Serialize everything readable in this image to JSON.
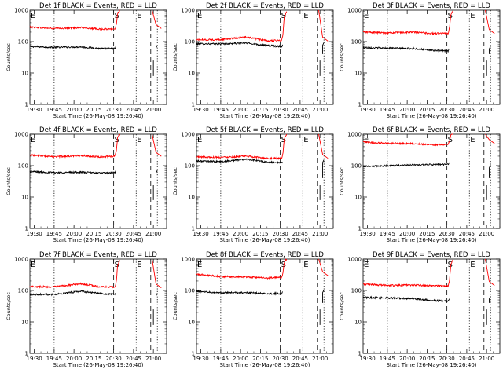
{
  "figure": {
    "xlabel": "Start Time (26-May-08 19:26:40)",
    "ylabel": "Counts/sec",
    "x_tick_labels": [
      "19:30",
      "19:45",
      "20:00",
      "20:15",
      "20:30",
      "20:45",
      "21:00"
    ],
    "y_tick_labels": [
      "1",
      "10",
      "100",
      "1000"
    ],
    "markers": {
      "S": "S",
      "E": "E"
    }
  },
  "colors": {
    "events": "#000000",
    "lld": "#ff0000"
  },
  "chart_data": [
    {
      "type": "line",
      "title": "Det 1f BLACK = Events, RED = LLD",
      "ylim": [
        1,
        1000
      ],
      "yscale": "log",
      "xlim": [
        "19:26:40",
        "21:10:00"
      ],
      "series": [
        {
          "name": "Events",
          "x": [
            "19:26:40",
            "19:45",
            "20:05",
            "20:20",
            "20:31",
            "20:32"
          ],
          "values": [
            70,
            66,
            68,
            60,
            60,
            70
          ]
        },
        {
          "name": "LLD",
          "x": [
            "19:26:40",
            "19:45",
            "20:05",
            "20:20",
            "20:31",
            "20:32",
            "20:33",
            "20:35"
          ],
          "values": [
            290,
            260,
            280,
            250,
            250,
            350,
            800,
            1050
          ]
        }
      ]
    },
    {
      "type": "line",
      "title": "Det 2f BLACK = Events, RED = LLD",
      "ylim": [
        1,
        1000
      ],
      "yscale": "log",
      "xlim": [
        "19:26:40",
        "21:10:00"
      ],
      "series": [
        {
          "name": "Events",
          "x": [
            "19:26:40",
            "19:45",
            "20:05",
            "20:20",
            "20:31",
            "20:32"
          ],
          "values": [
            85,
            85,
            90,
            75,
            70,
            80
          ]
        },
        {
          "name": "LLD",
          "x": [
            "19:26:40",
            "19:45",
            "20:05",
            "20:20",
            "20:31",
            "20:32",
            "20:33",
            "20:35"
          ],
          "values": [
            115,
            115,
            140,
            105,
            110,
            160,
            600,
            1000
          ]
        }
      ]
    },
    {
      "type": "line",
      "title": "Det 3f BLACK = Events, RED = LLD",
      "ylim": [
        1,
        1000
      ],
      "yscale": "log",
      "xlim": [
        "19:26:40",
        "21:10:00"
      ],
      "series": [
        {
          "name": "Events",
          "x": [
            "19:26:40",
            "19:45",
            "20:05",
            "20:20",
            "20:31",
            "20:32"
          ],
          "values": [
            65,
            62,
            60,
            52,
            50,
            60
          ]
        },
        {
          "name": "LLD",
          "x": [
            "19:26:40",
            "19:45",
            "20:05",
            "20:20",
            "20:31",
            "20:32",
            "20:33",
            "20:35"
          ],
          "values": [
            200,
            190,
            200,
            180,
            185,
            280,
            700,
            1050
          ]
        }
      ]
    },
    {
      "type": "line",
      "title": "Det 4f BLACK = Events, RED = LLD",
      "ylim": [
        1,
        1000
      ],
      "yscale": "log",
      "xlim": [
        "19:26:40",
        "21:10:00"
      ],
      "series": [
        {
          "name": "Events",
          "x": [
            "19:26:40",
            "19:45",
            "20:05",
            "20:20",
            "20:31",
            "20:32"
          ],
          "values": [
            65,
            60,
            62,
            58,
            60,
            75
          ]
        },
        {
          "name": "LLD",
          "x": [
            "19:26:40",
            "19:45",
            "20:05",
            "20:20",
            "20:31",
            "20:32",
            "20:33",
            "20:35"
          ],
          "values": [
            220,
            190,
            210,
            190,
            200,
            300,
            800,
            1050
          ]
        }
      ]
    },
    {
      "type": "line",
      "title": "Det 5f BLACK = Events, RED = LLD",
      "ylim": [
        1,
        1000
      ],
      "yscale": "log",
      "xlim": [
        "19:26:40",
        "21:10:00"
      ],
      "series": [
        {
          "name": "Events",
          "x": [
            "19:26:40",
            "19:45",
            "20:05",
            "20:20",
            "20:31",
            "20:32"
          ],
          "values": [
            140,
            135,
            160,
            130,
            125,
            135
          ]
        },
        {
          "name": "LLD",
          "x": [
            "19:26:40",
            "19:45",
            "20:05",
            "20:20",
            "20:31",
            "20:32",
            "20:33",
            "20:35"
          ],
          "values": [
            190,
            185,
            200,
            170,
            170,
            230,
            700,
            1000
          ]
        }
      ]
    },
    {
      "type": "line",
      "title": "Det 6f BLACK = Events, RED = LLD",
      "ylim": [
        1,
        1000
      ],
      "yscale": "log",
      "xlim": [
        "19:26:40",
        "21:10:00"
      ],
      "series": [
        {
          "name": "Events",
          "x": [
            "19:26:40",
            "19:45",
            "20:05",
            "20:20",
            "20:31",
            "20:32"
          ],
          "values": [
            95,
            100,
            105,
            108,
            110,
            125
          ]
        },
        {
          "name": "LLD",
          "x": [
            "19:26:40",
            "19:45",
            "20:05",
            "20:20",
            "20:31",
            "20:32",
            "20:33",
            "20:35"
          ],
          "values": [
            560,
            520,
            500,
            460,
            470,
            600,
            950,
            1100
          ]
        }
      ]
    },
    {
      "type": "line",
      "title": "Det 7f BLACK = Events, RED = LLD",
      "ylim": [
        1,
        1000
      ],
      "yscale": "log",
      "xlim": [
        "19:26:40",
        "21:10:00"
      ],
      "series": [
        {
          "name": "Events",
          "x": [
            "19:26:40",
            "19:45",
            "20:05",
            "20:20",
            "20:31",
            "20:32"
          ],
          "values": [
            75,
            75,
            95,
            80,
            75,
            90
          ]
        },
        {
          "name": "LLD",
          "x": [
            "19:26:40",
            "19:45",
            "20:05",
            "20:20",
            "20:31",
            "20:32",
            "20:33",
            "20:35"
          ],
          "values": [
            135,
            130,
            165,
            130,
            130,
            180,
            650,
            1000
          ]
        }
      ]
    },
    {
      "type": "line",
      "title": "Det 8f BLACK = Events, RED = LLD",
      "ylim": [
        1,
        1000
      ],
      "yscale": "log",
      "xlim": [
        "19:26:40",
        "21:10:00"
      ],
      "series": [
        {
          "name": "Events",
          "x": [
            "19:26:40",
            "19:45",
            "20:05",
            "20:20",
            "20:31",
            "20:32"
          ],
          "values": [
            95,
            85,
            85,
            80,
            80,
            90
          ]
        },
        {
          "name": "LLD",
          "x": [
            "19:26:40",
            "19:45",
            "20:05",
            "20:20",
            "20:31",
            "20:32",
            "20:33",
            "20:35"
          ],
          "values": [
            330,
            280,
            270,
            250,
            260,
            350,
            800,
            1050
          ]
        }
      ]
    },
    {
      "type": "line",
      "title": "Det 9f BLACK = Events, RED = LLD",
      "ylim": [
        1,
        1000
      ],
      "yscale": "log",
      "xlim": [
        "19:26:40",
        "21:10:00"
      ],
      "series": [
        {
          "name": "Events",
          "x": [
            "19:26:40",
            "19:45",
            "20:05",
            "20:20",
            "20:31",
            "20:32"
          ],
          "values": [
            60,
            58,
            55,
            48,
            45,
            58
          ]
        },
        {
          "name": "LLD",
          "x": [
            "19:26:40",
            "19:45",
            "20:05",
            "20:20",
            "20:31",
            "20:32",
            "20:33",
            "20:35"
          ],
          "values": [
            160,
            145,
            150,
            140,
            140,
            220,
            700,
            1050
          ]
        }
      ]
    }
  ]
}
